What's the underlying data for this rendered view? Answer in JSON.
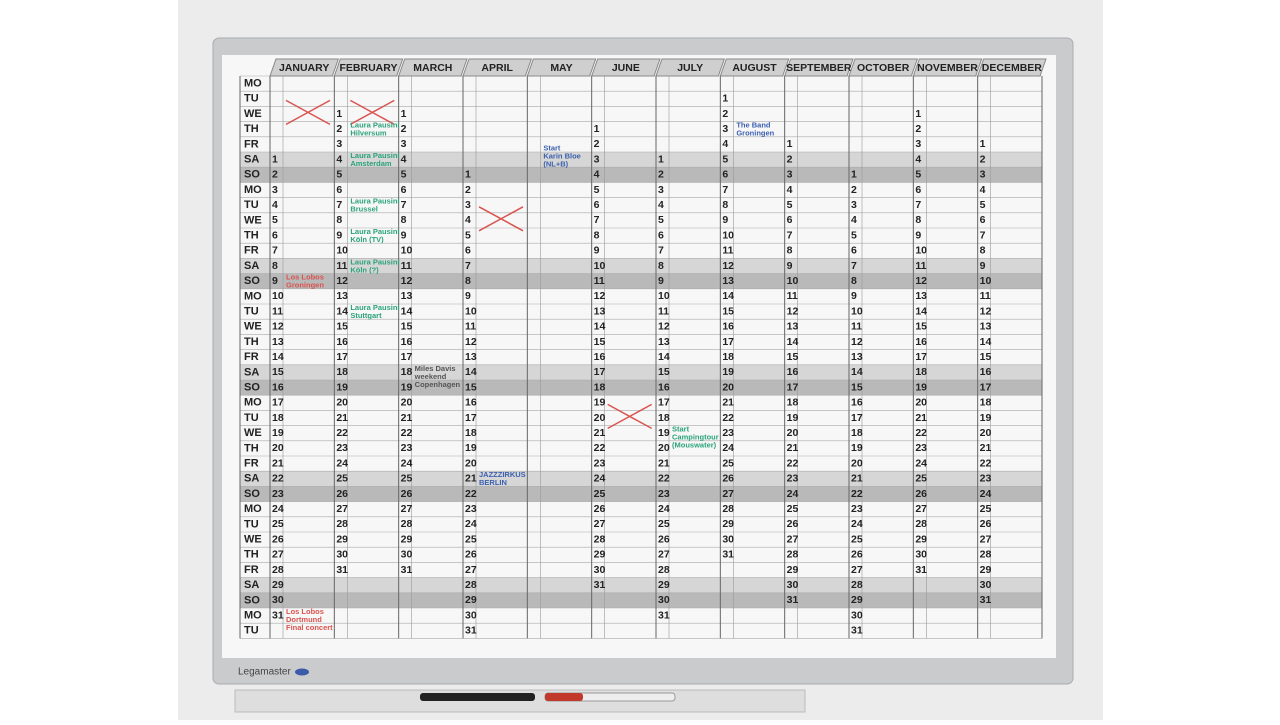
{
  "board": {
    "brand": "Legamaster",
    "weekdays": [
      "MO",
      "TU",
      "WE",
      "TH",
      "FR",
      "SA",
      "SO",
      "MO",
      "TU",
      "WE",
      "TH",
      "FR",
      "SA",
      "SO",
      "MO",
      "TU",
      "WE",
      "TH",
      "FR",
      "SA",
      "SO",
      "MO",
      "TU",
      "WE",
      "TH",
      "FR",
      "SA",
      "SO",
      "MO",
      "TU",
      "WE",
      "TH",
      "FR",
      "SA",
      "SO",
      "MO",
      "TU"
    ],
    "months": [
      {
        "name": "JANUARY",
        "days": [
          null,
          null,
          null,
          null,
          null,
          1,
          2,
          3,
          4,
          5,
          6,
          7,
          8,
          9,
          10,
          11,
          12,
          13,
          14,
          15,
          16,
          17,
          18,
          19,
          20,
          21,
          22,
          23,
          24,
          25,
          26,
          27,
          28,
          29,
          30,
          31,
          null
        ]
      },
      {
        "name": "FEBRUARY",
        "days": [
          null,
          null,
          1,
          2,
          3,
          4,
          5,
          6,
          7,
          8,
          9,
          10,
          11,
          12,
          13,
          14,
          15,
          16,
          17,
          18,
          19,
          20,
          21,
          22,
          23,
          24,
          25,
          26,
          27,
          28,
          29,
          30,
          31,
          null,
          null,
          null,
          null
        ]
      },
      {
        "name": "MARCH",
        "days": [
          null,
          null,
          1,
          2,
          3,
          4,
          5,
          6,
          7,
          8,
          9,
          10,
          11,
          12,
          13,
          14,
          15,
          16,
          17,
          18,
          19,
          20,
          21,
          22,
          23,
          24,
          25,
          26,
          27,
          28,
          29,
          30,
          31,
          null,
          null,
          null,
          null
        ]
      },
      {
        "name": "APRIL",
        "days": [
          null,
          null,
          null,
          null,
          null,
          null,
          1,
          2,
          3,
          4,
          5,
          6,
          7,
          8,
          9,
          10,
          11,
          12,
          13,
          14,
          15,
          16,
          17,
          18,
          19,
          20,
          21,
          22,
          23,
          24,
          25,
          26,
          27,
          28,
          29,
          30,
          31
        ]
      },
      {
        "name": "MAY",
        "days": [
          null,
          null,
          null,
          null,
          null,
          null,
          null,
          null,
          null,
          null,
          null,
          null,
          null,
          null,
          null,
          null,
          null,
          null,
          null,
          null,
          null,
          null,
          null,
          null,
          null,
          null,
          null,
          null,
          null,
          null,
          null,
          null,
          null,
          null,
          null,
          null,
          null
        ]
      },
      {
        "name": "JUNE",
        "days": [
          null,
          null,
          null,
          1,
          2,
          3,
          4,
          5,
          6,
          7,
          8,
          9,
          10,
          11,
          12,
          13,
          14,
          15,
          16,
          17,
          18,
          19,
          20,
          21,
          22,
          23,
          24,
          25,
          26,
          27,
          28,
          29,
          30,
          31,
          null,
          null,
          null
        ]
      },
      {
        "name": "JULY",
        "days": [
          null,
          null,
          null,
          null,
          null,
          1,
          2,
          3,
          4,
          5,
          6,
          7,
          8,
          9,
          10,
          11,
          12,
          13,
          14,
          15,
          16,
          17,
          18,
          19,
          20,
          21,
          22,
          23,
          24,
          25,
          26,
          27,
          28,
          29,
          30,
          31,
          null
        ]
      },
      {
        "name": "AUGUST",
        "days": [
          null,
          1,
          2,
          3,
          4,
          5,
          6,
          7,
          8,
          9,
          10,
          11,
          12,
          13,
          14,
          15,
          16,
          17,
          18,
          19,
          20,
          21,
          22,
          23,
          24,
          25,
          26,
          27,
          28,
          29,
          30,
          31,
          null,
          null,
          null,
          null,
          null
        ]
      },
      {
        "name": "SEPTEMBER",
        "days": [
          null,
          null,
          null,
          null,
          1,
          2,
          3,
          4,
          5,
          6,
          7,
          8,
          9,
          10,
          11,
          12,
          13,
          14,
          15,
          16,
          17,
          18,
          19,
          20,
          21,
          22,
          23,
          24,
          25,
          26,
          27,
          28,
          29,
          30,
          31,
          null,
          null
        ]
      },
      {
        "name": "OCTOBER",
        "days": [
          null,
          null,
          null,
          null,
          null,
          null,
          1,
          2,
          3,
          4,
          5,
          6,
          7,
          8,
          9,
          10,
          11,
          12,
          13,
          14,
          15,
          16,
          17,
          18,
          19,
          20,
          21,
          22,
          23,
          24,
          25,
          26,
          27,
          28,
          29,
          30,
          31
        ]
      },
      {
        "name": "NOVEMBER",
        "days": [
          null,
          null,
          1,
          2,
          3,
          4,
          5,
          6,
          7,
          8,
          9,
          10,
          11,
          12,
          13,
          14,
          15,
          16,
          17,
          18,
          19,
          20,
          21,
          22,
          23,
          24,
          25,
          26,
          27,
          28,
          29,
          30,
          31,
          null,
          null,
          null,
          null
        ]
      },
      {
        "name": "DECEMBER",
        "days": [
          null,
          null,
          null,
          null,
          1,
          2,
          3,
          4,
          5,
          6,
          7,
          8,
          9,
          10,
          11,
          12,
          13,
          14,
          15,
          16,
          17,
          18,
          19,
          20,
          21,
          22,
          23,
          24,
          25,
          26,
          27,
          28,
          29,
          30,
          31,
          null,
          null
        ]
      }
    ],
    "notes": [
      {
        "lines": [
          "Laura Pausini",
          "Hilversum"
        ]
      },
      {
        "lines": [
          "Laura Pausini",
          "Amsterdam"
        ]
      },
      {
        "lines": [
          "Laura Pausini",
          "Brussel"
        ]
      },
      {
        "lines": [
          "Laura Pausini",
          "Köln (TV)"
        ]
      },
      {
        "lines": [
          "Laura Pausini",
          "Köln (?)"
        ]
      },
      {
        "lines": [
          "Laura Pausini",
          "Stuttgart"
        ]
      },
      {
        "lines": [
          "Start",
          "Karin Bloe",
          "(NL+B)"
        ]
      },
      {
        "lines": [
          "Miles Davis",
          "weekend",
          "Copenhagen"
        ]
      },
      {
        "lines": [
          "JAZZZIRKUS",
          "BERLIN"
        ]
      },
      {
        "lines": [
          "Start",
          "Campingtour",
          "(Mouswater)"
        ]
      },
      {
        "lines": [
          "Los Lobos",
          "Groningen"
        ]
      },
      {
        "lines": [
          "Los Lobos",
          "Dortmund",
          "Final concert"
        ]
      },
      {
        "lines": [
          "The Band",
          "Groningen"
        ]
      }
    ]
  }
}
